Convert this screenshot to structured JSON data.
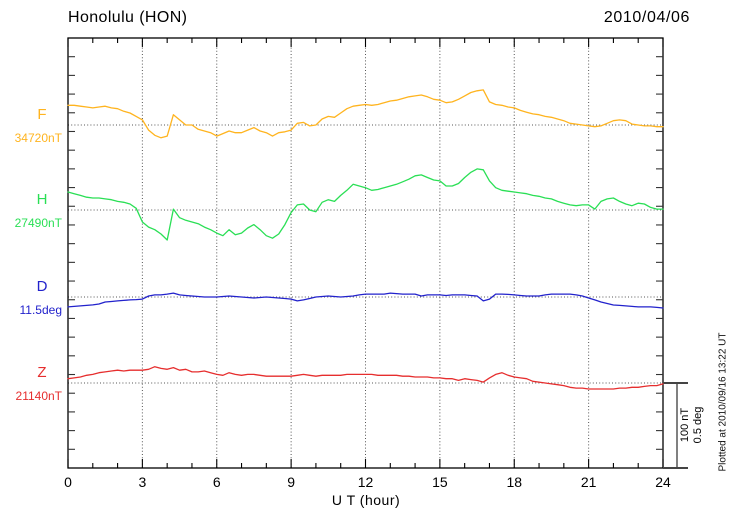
{
  "header": {
    "title": "Honolulu (HON)",
    "date": "2010/04/06"
  },
  "x_axis": {
    "label": "U T (hour)",
    "ticks": [
      "0",
      "3",
      "6",
      "9",
      "12",
      "15",
      "18",
      "21",
      "24"
    ],
    "minor_step_hours": 1,
    "major_step_hours": 3
  },
  "scale_bar": {
    "line1": "100 nT",
    "line2": "0.5 deg"
  },
  "footer_note": "Plotted at 2010/09/16 13:22 UT",
  "chart_data": {
    "type": "line",
    "x_unit": "hour",
    "x_range": [
      0,
      24
    ],
    "x_step": 0.25,
    "grid": "dotted vertical every 3 h; dotted horizontal baseline per trace",
    "legend_position": "left margin (trace letter + baseline value)",
    "scale": {
      "nT_per_division": 100,
      "deg_per_division": 0.5
    },
    "series": [
      {
        "name": "F",
        "unit": "nT",
        "baseline": 34720,
        "value_label": "34720nT",
        "color": "#FFB41F",
        "values": [
          23,
          23,
          22,
          21,
          20,
          21,
          22,
          20,
          19,
          16,
          14,
          10,
          6,
          -6,
          -12,
          -15,
          -13,
          12,
          6,
          0,
          0,
          -5,
          -7,
          -9,
          -13,
          -10,
          -7,
          -9,
          -9,
          -6,
          -3,
          -7,
          -9,
          -13,
          -9,
          -8,
          -6,
          2,
          3,
          -1,
          0,
          7,
          10,
          9,
          14,
          19,
          22,
          23,
          24,
          23,
          24,
          26,
          28,
          29,
          31,
          33,
          34,
          35,
          33,
          30,
          29,
          26,
          27,
          30,
          34,
          38,
          40,
          41,
          27,
          24,
          23,
          21,
          20,
          17,
          15,
          13,
          12,
          10,
          9,
          7,
          5,
          2,
          1,
          0,
          -1,
          -2,
          -1,
          2,
          5,
          6,
          5,
          1,
          0,
          -1,
          -1,
          -2,
          -2
        ]
      },
      {
        "name": "H",
        "unit": "nT",
        "baseline": 27490,
        "value_label": "27490nT",
        "color": "#2ADF55",
        "values": [
          21,
          19,
          17,
          15,
          14,
          14,
          13,
          12,
          10,
          9,
          7,
          2,
          -14,
          -20,
          -23,
          -28,
          -35,
          1,
          -9,
          -12,
          -14,
          -16,
          -20,
          -23,
          -27,
          -30,
          -23,
          -29,
          -27,
          -21,
          -17,
          -23,
          -30,
          -33,
          -28,
          -17,
          -3,
          6,
          7,
          0,
          -2,
          9,
          12,
          10,
          17,
          23,
          30,
          28,
          26,
          23,
          24,
          26,
          28,
          30,
          33,
          36,
          40,
          41,
          38,
          35,
          34,
          28,
          28,
          31,
          38,
          44,
          48,
          47,
          34,
          26,
          23,
          22,
          21,
          20,
          19,
          17,
          16,
          14,
          13,
          10,
          8,
          6,
          5,
          6,
          6,
          1,
          10,
          13,
          14,
          10,
          7,
          5,
          8,
          7,
          3,
          1,
          1
        ]
      },
      {
        "name": "D",
        "unit": "deg",
        "baseline": 11.5,
        "value_label": "11.5deg",
        "color": "#2222CC",
        "values": [
          -0.058,
          -0.055,
          -0.052,
          -0.049,
          -0.046,
          -0.041,
          -0.029,
          -0.026,
          -0.023,
          -0.02,
          -0.017,
          -0.015,
          -0.012,
          0.006,
          0.012,
          0.012,
          0.017,
          0.023,
          0.012,
          0.009,
          0.006,
          0.003,
          0,
          0,
          0,
          0.003,
          0.006,
          0.003,
          0,
          -0.003,
          -0.006,
          -0.003,
          0,
          -0.003,
          -0.006,
          -0.009,
          -0.012,
          -0.023,
          -0.017,
          -0.009,
          0,
          0.003,
          0.006,
          0.003,
          0,
          0.003,
          0.006,
          0.012,
          0.017,
          0.017,
          0.017,
          0.017,
          0.023,
          0.02,
          0.017,
          0.017,
          0.017,
          0.006,
          0.012,
          0.012,
          0.012,
          0.009,
          0.012,
          0.012,
          0.012,
          0.009,
          0.006,
          -0.023,
          -0.012,
          0.017,
          0.017,
          0.015,
          0.012,
          0.009,
          0.006,
          0.006,
          0.006,
          0.012,
          0.017,
          0.017,
          0.017,
          0.017,
          0.012,
          0.006,
          -0.006,
          -0.017,
          -0.029,
          -0.038,
          -0.047,
          -0.049,
          -0.052,
          -0.055,
          -0.058,
          -0.058,
          -0.058,
          -0.061,
          -0.064
        ]
      },
      {
        "name": "Z",
        "unit": "nT",
        "baseline": 21140,
        "value_label": "21140nT",
        "color": "#E62E2E",
        "values": [
          5,
          6,
          7,
          9,
          10,
          12,
          13,
          14,
          15,
          14,
          15,
          15,
          15,
          16,
          19,
          17,
          16,
          18,
          15,
          16,
          13,
          13,
          14,
          12,
          10,
          9,
          12,
          10,
          9,
          10,
          10,
          9,
          8,
          8,
          8,
          8,
          8,
          9,
          10,
          9,
          8,
          9,
          9,
          9,
          9,
          10,
          10,
          10,
          10,
          10,
          9,
          9,
          9,
          9,
          8,
          8,
          7,
          7,
          7,
          6,
          6,
          5,
          5,
          3,
          5,
          4,
          3,
          1,
          6,
          10,
          12,
          9,
          7,
          6,
          5,
          2,
          1,
          0,
          -1,
          -2,
          -3,
          -5,
          -6,
          -6,
          -7,
          -7,
          -7,
          -7,
          -7,
          -6,
          -6,
          -5,
          -5,
          -4,
          -3,
          -3,
          -1
        ]
      }
    ]
  }
}
